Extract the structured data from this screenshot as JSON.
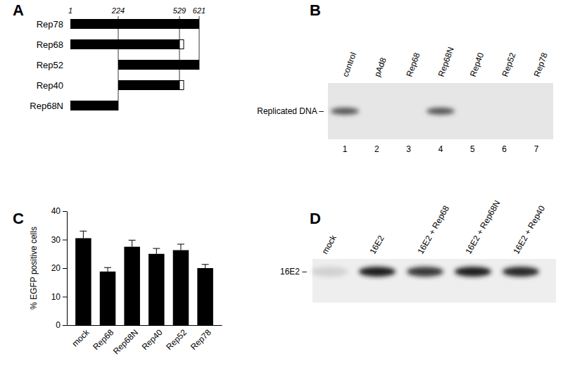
{
  "panel_labels": [
    "A",
    "B",
    "C",
    "D"
  ],
  "panel_a": {
    "scale_ticks": [
      1,
      224,
      529,
      621
    ],
    "constructs": [
      {
        "name": "Rep78",
        "start": 1,
        "end": 621,
        "tail": false
      },
      {
        "name": "Rep68",
        "start": 1,
        "end": 529,
        "tail": true
      },
      {
        "name": "Rep52",
        "start": 224,
        "end": 621,
        "tail": false
      },
      {
        "name": "Rep40",
        "start": 224,
        "end": 529,
        "tail": true
      },
      {
        "name": "Rep68N",
        "start": 1,
        "end": 224,
        "tail": false
      }
    ]
  },
  "panel_b": {
    "lanes": [
      "control",
      "pAd8",
      "Rep68",
      "Rep68N",
      "Rep40",
      "Rep52",
      "Rep78"
    ],
    "lane_numbers": [
      1,
      2,
      3,
      4,
      5,
      6,
      7
    ],
    "band_label": "Replicated DNA –",
    "replicated": [
      true,
      false,
      false,
      true,
      false,
      false,
      false
    ]
  },
  "chart_data": {
    "type": "bar",
    "y_label": "% EGFP positive cells",
    "categories": [
      "mock",
      "Rep68",
      "Rep68N",
      "Rep40",
      "Rep52",
      "Rep78"
    ],
    "values": [
      30.5,
      18.8,
      27.5,
      25,
      26.3,
      20
    ],
    "errors": [
      2.5,
      1.4,
      2.3,
      1.9,
      2.1,
      1.3
    ],
    "color": "#000000",
    "ylim": [
      0,
      40
    ],
    "yticks": [
      0,
      10,
      20,
      30,
      40
    ]
  },
  "panel_d": {
    "lanes": [
      "mock",
      "16E2",
      "16E2 + Rep68",
      "16E2 + Rep68N",
      "16E2 + Rep40"
    ],
    "band_label": "16E2 –",
    "band_intensity": [
      0.12,
      1,
      0.85,
      1,
      0.95
    ]
  }
}
